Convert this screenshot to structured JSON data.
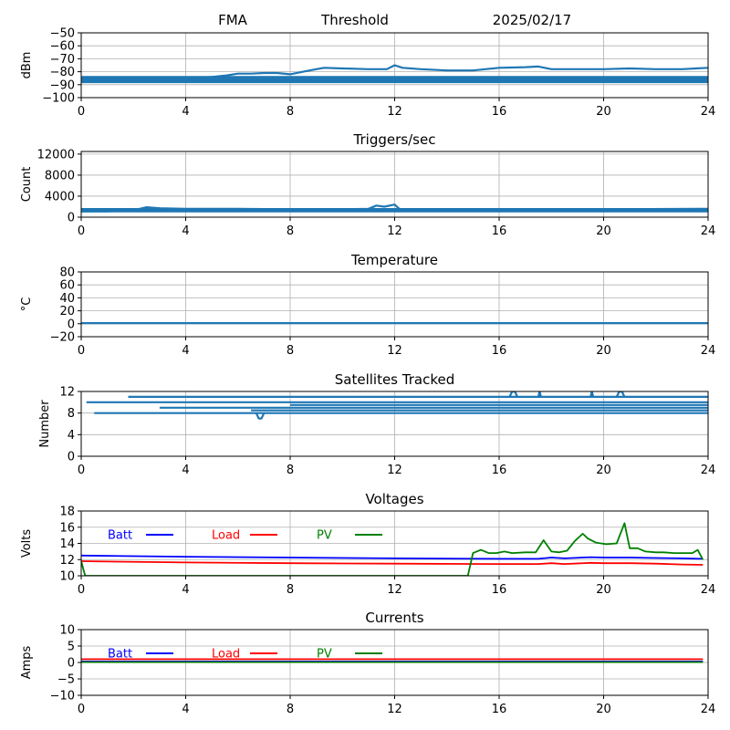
{
  "header": {
    "site": "FMA",
    "mode": "Threshold",
    "date": "2025/02/17"
  },
  "colors": {
    "primary": "#1f77b4",
    "batt": "#0000ff",
    "load": "#ff0000",
    "pv": "#008000",
    "grid": "#b0b0b0"
  },
  "chart_data": [
    {
      "type": "line",
      "title": "",
      "ylabel": "dBm",
      "xlim": [
        0,
        24
      ],
      "ylim": [
        -100,
        -50
      ],
      "xticks": [
        0,
        4,
        8,
        12,
        16,
        20,
        24
      ],
      "xtick_labels": [
        "0",
        "4",
        "8",
        "12",
        "16",
        "20",
        "24"
      ],
      "yticks": [
        -100,
        -90,
        -80,
        -70,
        -60,
        -50
      ],
      "ytick_labels": [
        "−100",
        "−90",
        "−80",
        "−70",
        "−60",
        "−50"
      ],
      "grid": true,
      "series": [
        {
          "x": [
            0,
            0.3,
            0.8,
            2,
            4,
            4.5,
            5,
            5.5,
            6,
            6.5,
            7,
            7.5,
            8,
            8.5,
            9,
            9.3,
            10,
            11,
            11.7,
            12,
            12.3,
            13,
            14,
            15,
            16,
            17,
            17.5,
            18,
            19,
            20,
            21,
            22,
            23,
            24
          ],
          "y": [
            -85,
            -86.5,
            -87.5,
            -87.5,
            -87,
            -85,
            -84,
            -83,
            -81.5,
            -81.5,
            -81,
            -81,
            -82,
            -80,
            -78,
            -77,
            -77.5,
            -78,
            -78,
            -75,
            -77,
            -78,
            -79,
            -79,
            -77,
            -76.5,
            -76,
            -78,
            -78,
            -78,
            -77.5,
            -78,
            -78,
            -77
          ]
        },
        {
          "x": [
            0,
            24
          ],
          "y": [
            -84,
            -84
          ]
        },
        {
          "x": [
            0,
            24
          ],
          "y": [
            -85,
            -85
          ]
        },
        {
          "x": [
            0,
            24
          ],
          "y": [
            -86,
            -86
          ]
        },
        {
          "x": [
            0,
            24
          ],
          "y": [
            -87,
            -87
          ]
        },
        {
          "x": [
            0,
            24
          ],
          "y": [
            -88,
            -88
          ]
        }
      ]
    },
    {
      "type": "line",
      "title": "Triggers/sec",
      "ylabel": "Count",
      "xlim": [
        0,
        24
      ],
      "ylim": [
        0,
        12500
      ],
      "xticks": [
        0,
        4,
        8,
        12,
        16,
        20,
        24
      ],
      "xtick_labels": [
        "0",
        "4",
        "8",
        "12",
        "16",
        "20",
        "24"
      ],
      "yticks": [
        0,
        4000,
        8000,
        12000
      ],
      "ytick_labels": [
        "0",
        "4000",
        "8000",
        "12000"
      ],
      "grid": true,
      "series": [
        {
          "x": [
            0,
            1,
            2,
            2.5,
            3,
            4,
            6,
            8,
            10,
            11,
            11.3,
            11.6,
            12,
            12.2,
            12.5,
            13,
            16,
            20,
            24
          ],
          "y": [
            1100,
            1100,
            1300,
            1900,
            1700,
            1600,
            1600,
            1500,
            1500,
            1600,
            2200,
            2000,
            2400,
            1500,
            1400,
            1500,
            1500,
            1500,
            1600
          ]
        },
        {
          "x": [
            0,
            24
          ],
          "y": [
            1100,
            1100
          ]
        },
        {
          "x": [
            0,
            24
          ],
          "y": [
            1250,
            1250
          ]
        },
        {
          "x": [
            0,
            24
          ],
          "y": [
            1400,
            1400
          ]
        },
        {
          "x": [
            0,
            24
          ],
          "y": [
            1550,
            1550
          ]
        }
      ]
    },
    {
      "type": "line",
      "title": "Temperature",
      "ylabel": "°C",
      "xlim": [
        0,
        24
      ],
      "ylim": [
        -20,
        80
      ],
      "xticks": [
        0,
        4,
        8,
        12,
        16,
        20,
        24
      ],
      "xtick_labels": [
        "0",
        "4",
        "8",
        "12",
        "16",
        "20",
        "24"
      ],
      "yticks": [
        -20,
        0,
        20,
        40,
        60,
        80
      ],
      "ytick_labels": [
        "−20",
        "0",
        "20",
        "40",
        "60",
        "80"
      ],
      "grid": true,
      "series": [
        {
          "x": [
            0,
            24
          ],
          "y": [
            1,
            1
          ]
        }
      ]
    },
    {
      "type": "line",
      "title": "Satellites Tracked",
      "ylabel": "Number",
      "xlim": [
        0,
        24
      ],
      "ylim": [
        0,
        12
      ],
      "xticks": [
        0,
        4,
        8,
        12,
        16,
        20,
        24
      ],
      "xtick_labels": [
        "0",
        "4",
        "8",
        "12",
        "16",
        "20",
        "24"
      ],
      "yticks": [
        0,
        4,
        8,
        12
      ],
      "ytick_labels": [
        "0",
        "4",
        "8",
        "12"
      ],
      "grid": true,
      "series": [
        {
          "x": [
            0.2,
            24
          ],
          "y": [
            10,
            10
          ]
        },
        {
          "x": [
            0.5,
            24
          ],
          "y": [
            8,
            8
          ]
        },
        {
          "x": [
            1.8,
            24
          ],
          "y": [
            11,
            11
          ]
        },
        {
          "x": [
            3,
            24
          ],
          "y": [
            9,
            9
          ]
        },
        {
          "x": [
            6.5,
            24
          ],
          "y": [
            8.5,
            8.5
          ]
        },
        {
          "x": [
            8,
            24
          ],
          "y": [
            9.5,
            9.5
          ]
        },
        {
          "x": [
            6.7,
            6.8,
            6.9,
            7.0
          ],
          "y": [
            8,
            7,
            7,
            8
          ]
        },
        {
          "x": [
            16.4,
            16.5,
            16.6,
            16.7
          ],
          "y": [
            11,
            12,
            12,
            11
          ]
        },
        {
          "x": [
            17.5,
            17.55,
            17.6
          ],
          "y": [
            11,
            12,
            11
          ]
        },
        {
          "x": [
            19.5,
            19.55,
            19.6
          ],
          "y": [
            11,
            12,
            11
          ]
        },
        {
          "x": [
            20.5,
            20.6,
            20.7,
            20.8
          ],
          "y": [
            11,
            12,
            12,
            11
          ]
        }
      ]
    },
    {
      "type": "line",
      "title": "Voltages",
      "ylabel": "Volts",
      "xlim": [
        0,
        24
      ],
      "ylim": [
        10,
        18
      ],
      "xticks": [
        0,
        4,
        8,
        12,
        16,
        20,
        24
      ],
      "xtick_labels": [
        "0",
        "4",
        "8",
        "12",
        "16",
        "20",
        "24"
      ],
      "yticks": [
        10,
        12,
        14,
        16,
        18
      ],
      "ytick_labels": [
        "10",
        "12",
        "14",
        "16",
        "18"
      ],
      "grid": true,
      "legend": [
        "Batt",
        "Load",
        "PV"
      ],
      "series": [
        {
          "name": "Batt",
          "color": "#0000ff",
          "x": [
            0,
            4,
            8,
            12,
            16,
            17.5,
            18,
            18.5,
            19.5,
            20,
            21,
            22,
            23,
            23.8
          ],
          "y": [
            12.5,
            12.35,
            12.25,
            12.15,
            12.1,
            12.1,
            12.25,
            12.15,
            12.3,
            12.25,
            12.25,
            12.2,
            12.15,
            12.1
          ]
        },
        {
          "name": "Load",
          "color": "#ff0000",
          "x": [
            0,
            4,
            8,
            12,
            16,
            17.5,
            18,
            18.5,
            19.5,
            20,
            21,
            22,
            23,
            23.8
          ],
          "y": [
            11.8,
            11.65,
            11.55,
            11.5,
            11.45,
            11.45,
            11.55,
            11.45,
            11.6,
            11.55,
            11.55,
            11.5,
            11.4,
            11.35
          ]
        },
        {
          "name": "PV",
          "color": "#008000",
          "x": [
            0,
            0.15,
            14.8,
            15.0,
            15.3,
            15.6,
            15.9,
            16.2,
            16.5,
            17.0,
            17.4,
            17.7,
            18.0,
            18.3,
            18.6,
            18.9,
            19.2,
            19.4,
            19.7,
            20.1,
            20.5,
            20.8,
            21.0,
            21.3,
            21.6,
            22.0,
            22.3,
            22.7,
            23.1,
            23.4,
            23.6,
            23.8
          ],
          "y": [
            11.8,
            10,
            10,
            12.8,
            13.2,
            12.8,
            12.8,
            13.0,
            12.8,
            12.9,
            12.9,
            14.4,
            13.0,
            12.9,
            13.1,
            14.3,
            15.2,
            14.6,
            14.1,
            13.9,
            14.0,
            16.5,
            13.4,
            13.4,
            13.0,
            12.9,
            12.9,
            12.8,
            12.8,
            12.8,
            13.2,
            12.0
          ]
        }
      ]
    },
    {
      "type": "line",
      "title": "Currents",
      "ylabel": "Amps",
      "xlim": [
        0,
        24
      ],
      "ylim": [
        -10,
        10
      ],
      "xticks": [
        0,
        4,
        8,
        12,
        16,
        20,
        24
      ],
      "xtick_labels": [
        "0",
        "4",
        "8",
        "12",
        "16",
        "20",
        "24"
      ],
      "yticks": [
        -10,
        -5,
        0,
        5,
        10
      ],
      "ytick_labels": [
        "−10",
        "−5",
        "0",
        "5",
        "10"
      ],
      "grid": true,
      "legend": [
        "Batt",
        "Load",
        "PV"
      ],
      "series": [
        {
          "name": "Load",
          "color": "#ff0000",
          "x": [
            0,
            23.8
          ],
          "y": [
            1.0,
            1.0
          ]
        },
        {
          "name": "Batt",
          "color": "#0000ff",
          "x": [
            0,
            23.8
          ],
          "y": [
            0.3,
            0.3
          ]
        },
        {
          "name": "PV",
          "color": "#008000",
          "x": [
            0,
            23.8
          ],
          "y": [
            0.1,
            0.1
          ]
        }
      ]
    }
  ]
}
